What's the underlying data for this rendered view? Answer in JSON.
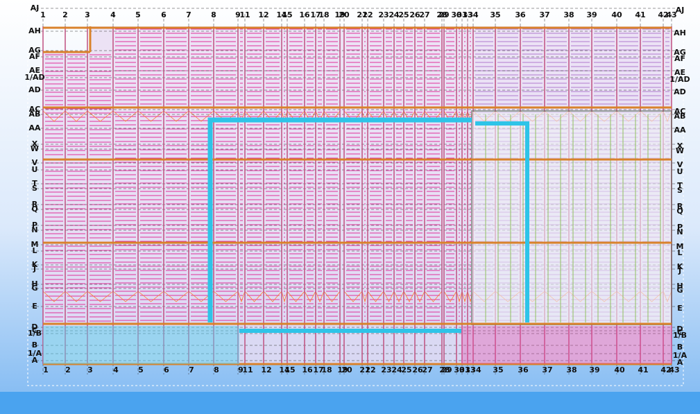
{
  "grid": {
    "columns": [
      "1",
      "2",
      "3",
      "4",
      "5",
      "6",
      "7",
      "8",
      "9",
      "11",
      "12",
      "14",
      "15",
      "16",
      "17",
      "18",
      "19",
      "20",
      "21",
      "22",
      "23",
      "24",
      "25",
      "26",
      "27",
      "28",
      "29",
      "30",
      "31",
      "33",
      "34",
      "35",
      "36",
      "37",
      "38",
      "39",
      "40",
      "41",
      "42",
      "43"
    ],
    "rows": [
      "AJ",
      "AH",
      "AG",
      "AF",
      "AE",
      "1/AD",
      "AD",
      "AC",
      "AB",
      "AA",
      "X",
      "W",
      "V",
      "U",
      "T",
      "S",
      "R",
      "Q",
      "P",
      "N",
      "M",
      "L",
      "K",
      "J",
      "H",
      "G",
      "E",
      "D",
      "C",
      "1/B",
      "B",
      "1/A",
      "A"
    ]
  }
}
